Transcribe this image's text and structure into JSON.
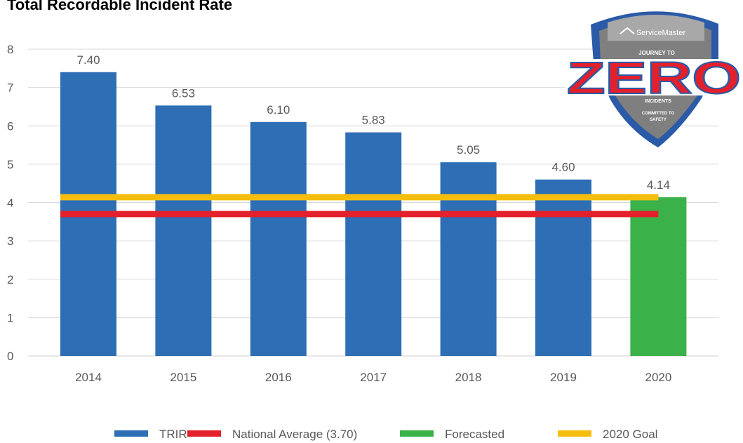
{
  "chart_data": {
    "type": "bar",
    "title": "Total Recordable Incident Rate",
    "categories": [
      "2014",
      "2015",
      "2016",
      "2017",
      "2018",
      "2019",
      "2020"
    ],
    "series": [
      {
        "name": "TRIR",
        "values": [
          7.4,
          6.53,
          6.1,
          5.83,
          5.05,
          4.6,
          null
        ],
        "color": "#2E6EB5"
      },
      {
        "name": "Forecasted",
        "values": [
          null,
          null,
          null,
          null,
          null,
          null,
          4.14
        ],
        "color": "#3BB14A"
      }
    ],
    "data_labels": [
      "7.40",
      "6.53",
      "6.10",
      "5.83",
      "5.05",
      "4.60",
      "4.14"
    ],
    "reference_lines": [
      {
        "name": "National Average (3.70)",
        "value": 3.7,
        "color": "#E3202B"
      },
      {
        "name": "2020 Goal",
        "value": 4.14,
        "color": "#F5BE0E"
      }
    ],
    "ylim": [
      0,
      8
    ],
    "yticks": [
      0,
      1,
      2,
      3,
      4,
      5,
      6,
      7,
      8
    ],
    "grid": true,
    "legend_position": "bottom",
    "legend": [
      {
        "label": "TRIR",
        "color": "#2E6EB5"
      },
      {
        "label": "National Average (3.70)",
        "color": "#E3202B"
      },
      {
        "label": "Forecasted",
        "color": "#3BB14A"
      },
      {
        "label": "2020 Goal",
        "color": "#F5BE0E"
      }
    ]
  },
  "logo": {
    "brand": "ServiceMaster",
    "line1": "JOURNEY TO",
    "word": "ZERO",
    "line2": "INCIDENTS",
    "line3": "COMMITTED TO",
    "line4": "SAFETY"
  }
}
